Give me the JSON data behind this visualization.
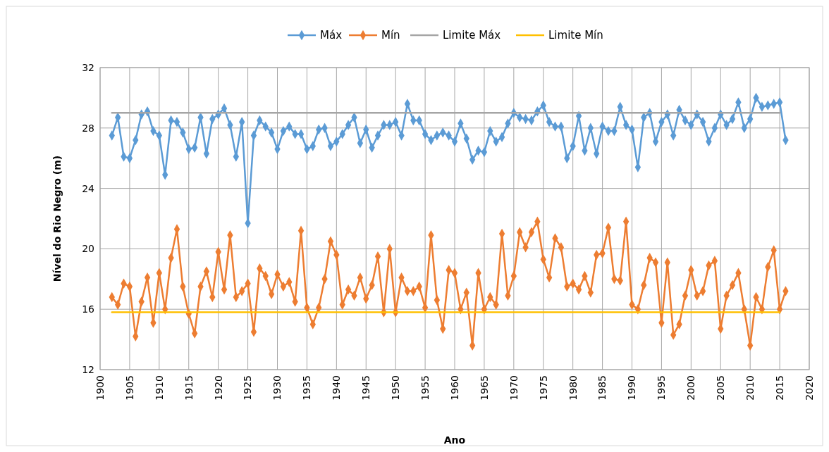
{
  "chart_data": {
    "type": "line",
    "xlabel": "Ano",
    "ylabel": "Nível do Rio Negro (m)",
    "xlim": [
      1900,
      2020
    ],
    "xticks": [
      1900,
      1905,
      1910,
      1915,
      1920,
      1925,
      1930,
      1935,
      1940,
      1945,
      1950,
      1955,
      1960,
      1965,
      1970,
      1975,
      1980,
      1985,
      1990,
      1995,
      2000,
      2005,
      2010,
      2015,
      2020
    ],
    "ylim": [
      12,
      32
    ],
    "yticks": [
      12,
      16,
      20,
      24,
      28,
      32
    ],
    "grid": true,
    "legend": "top",
    "line_style": "solid",
    "x": [
      1902,
      1903,
      1904,
      1905,
      1906,
      1907,
      1908,
      1909,
      1910,
      1911,
      1912,
      1913,
      1914,
      1915,
      1916,
      1917,
      1918,
      1919,
      1920,
      1921,
      1922,
      1923,
      1924,
      1925,
      1926,
      1927,
      1928,
      1929,
      1930,
      1931,
      1932,
      1933,
      1934,
      1935,
      1936,
      1937,
      1938,
      1939,
      1940,
      1941,
      1942,
      1943,
      1944,
      1945,
      1946,
      1947,
      1948,
      1949,
      1950,
      1951,
      1952,
      1953,
      1954,
      1955,
      1956,
      1957,
      1958,
      1959,
      1960,
      1961,
      1962,
      1963,
      1964,
      1965,
      1966,
      1967,
      1968,
      1969,
      1970,
      1971,
      1972,
      1973,
      1974,
      1975,
      1976,
      1977,
      1978,
      1979,
      1980,
      1981,
      1982,
      1983,
      1984,
      1985,
      1986,
      1987,
      1988,
      1989,
      1990,
      1991,
      1992,
      1993,
      1994,
      1995,
      1996,
      1997,
      1998,
      1999,
      2000,
      2001,
      2002,
      2003,
      2004,
      2005,
      2006,
      2007,
      2008,
      2009,
      2010,
      2011,
      2012,
      2013,
      2014,
      2015,
      2016
    ],
    "series": [
      {
        "name": "Máx",
        "color": "#5b9bd5",
        "marker": "diamond",
        "values": [
          27.5,
          28.7,
          26.1,
          26.0,
          27.2,
          28.9,
          29.1,
          27.8,
          27.5,
          24.9,
          28.5,
          28.4,
          27.7,
          26.6,
          26.7,
          28.7,
          26.3,
          28.6,
          28.9,
          29.3,
          28.2,
          26.1,
          28.4,
          21.7,
          27.5,
          28.5,
          28.1,
          27.7,
          26.6,
          27.8,
          28.1,
          27.6,
          27.6,
          26.6,
          26.8,
          27.9,
          28.0,
          26.8,
          27.1,
          27.6,
          28.2,
          28.7,
          27.0,
          27.9,
          26.7,
          27.5,
          28.2,
          28.2,
          28.4,
          27.5,
          29.6,
          28.5,
          28.5,
          27.6,
          27.2,
          27.5,
          27.7,
          27.5,
          27.1,
          28.3,
          27.3,
          25.9,
          26.5,
          26.4,
          27.8,
          27.1,
          27.4,
          28.3,
          29.0,
          28.7,
          28.6,
          28.5,
          29.1,
          29.5,
          28.4,
          28.1,
          28.1,
          26.0,
          26.8,
          28.8,
          26.5,
          28.0,
          26.3,
          28.1,
          27.8,
          27.8,
          29.4,
          28.2,
          27.9,
          25.4,
          28.7,
          29.0,
          27.1,
          28.4,
          28.9,
          27.5,
          29.2,
          28.5,
          28.2,
          28.9,
          28.4,
          27.1,
          28.0,
          28.9,
          28.2,
          28.6,
          29.7,
          28.0,
          28.6,
          30.0,
          29.4,
          29.5,
          29.6,
          29.7,
          27.2
        ]
      },
      {
        "name": "Mín",
        "color": "#ed7d31",
        "marker": "diamond",
        "values": [
          16.8,
          16.3,
          17.7,
          17.5,
          14.2,
          16.5,
          18.1,
          15.1,
          18.4,
          16.0,
          19.4,
          21.3,
          17.5,
          15.7,
          14.4,
          17.5,
          18.5,
          16.8,
          19.8,
          17.3,
          20.9,
          16.8,
          17.2,
          17.7,
          14.5,
          18.7,
          18.2,
          17.0,
          18.3,
          17.5,
          17.8,
          16.5,
          21.2,
          16.1,
          15.0,
          16.1,
          18.0,
          20.5,
          19.6,
          16.3,
          17.3,
          16.9,
          18.1,
          16.7,
          17.6,
          19.5,
          15.8,
          20.0,
          15.8,
          18.1,
          17.2,
          17.2,
          17.5,
          16.1,
          20.9,
          16.6,
          14.7,
          18.6,
          18.4,
          16.0,
          17.1,
          13.6,
          18.4,
          16.0,
          16.8,
          16.3,
          21.0,
          16.9,
          18.2,
          21.1,
          20.1,
          21.1,
          21.8,
          19.3,
          18.1,
          20.7,
          20.1,
          17.5,
          17.7,
          17.3,
          18.2,
          17.1,
          19.6,
          19.7,
          21.4,
          18.0,
          17.9,
          21.8,
          16.3,
          16.0,
          17.6,
          19.4,
          19.1,
          15.1,
          19.1,
          14.3,
          15.0,
          16.9,
          18.6,
          16.9,
          17.2,
          18.9,
          19.2,
          14.7,
          16.9,
          17.6,
          18.4,
          16.0,
          13.6,
          16.8,
          16.0,
          18.8,
          19.9,
          16.0,
          17.2
        ]
      },
      {
        "name": "Limite Máx",
        "color": "#a5a5a5",
        "marker": "none",
        "values": [
          29.0,
          29.0,
          29.0,
          29.0,
          29.0,
          29.0,
          29.0,
          29.0,
          29.0,
          29.0,
          29.0,
          29.0,
          29.0,
          29.0,
          29.0,
          29.0,
          29.0,
          29.0,
          29.0,
          29.0,
          29.0,
          29.0,
          29.0,
          29.0,
          29.0,
          29.0,
          29.0,
          29.0,
          29.0,
          29.0,
          29.0,
          29.0,
          29.0,
          29.0,
          29.0,
          29.0,
          29.0,
          29.0,
          29.0,
          29.0,
          29.0,
          29.0,
          29.0,
          29.0,
          29.0,
          29.0,
          29.0,
          29.0,
          29.0,
          29.0,
          29.0,
          29.0,
          29.0,
          29.0,
          29.0,
          29.0,
          29.0,
          29.0,
          29.0,
          29.0,
          29.0,
          29.0,
          29.0,
          29.0,
          29.0,
          29.0,
          29.0,
          29.0,
          29.0,
          29.0,
          29.0,
          29.0,
          29.0,
          29.0,
          29.0,
          29.0,
          29.0,
          29.0,
          29.0,
          29.0,
          29.0,
          29.0,
          29.0,
          29.0,
          29.0,
          29.0,
          29.0,
          29.0,
          29.0,
          29.0,
          29.0,
          29.0,
          29.0,
          29.0,
          29.0,
          29.0,
          29.0,
          29.0,
          29.0,
          29.0,
          29.0,
          29.0,
          29.0,
          29.0,
          29.0,
          29.0,
          29.0,
          29.0,
          29.0,
          29.0,
          29.0,
          29.0,
          29.0,
          29.0,
          null
        ]
      },
      {
        "name": "Limite Mín",
        "color": "#ffc000",
        "marker": "none",
        "values": [
          15.8,
          15.8,
          15.8,
          15.8,
          15.8,
          15.8,
          15.8,
          15.8,
          15.8,
          15.8,
          15.8,
          15.8,
          15.8,
          15.8,
          15.8,
          15.8,
          15.8,
          15.8,
          15.8,
          15.8,
          15.8,
          15.8,
          15.8,
          15.8,
          15.8,
          15.8,
          15.8,
          15.8,
          15.8,
          15.8,
          15.8,
          15.8,
          15.8,
          15.8,
          15.8,
          15.8,
          15.8,
          15.8,
          15.8,
          15.8,
          15.8,
          15.8,
          15.8,
          15.8,
          15.8,
          15.8,
          15.8,
          15.8,
          15.8,
          15.8,
          15.8,
          15.8,
          15.8,
          15.8,
          15.8,
          15.8,
          15.8,
          15.8,
          15.8,
          15.8,
          15.8,
          15.8,
          15.8,
          15.8,
          15.8,
          15.8,
          15.8,
          15.8,
          15.8,
          15.8,
          15.8,
          15.8,
          15.8,
          15.8,
          15.8,
          15.8,
          15.8,
          15.8,
          15.8,
          15.8,
          15.8,
          15.8,
          15.8,
          15.8,
          15.8,
          15.8,
          15.8,
          15.8,
          15.8,
          15.8,
          15.8,
          15.8,
          15.8,
          15.8,
          15.8,
          15.8,
          15.8,
          15.8,
          15.8,
          15.8,
          15.8,
          15.8,
          15.8,
          15.8,
          15.8,
          15.8,
          15.8,
          15.8,
          15.8,
          15.8,
          15.8,
          15.8,
          15.8,
          15.8,
          null
        ]
      }
    ]
  }
}
